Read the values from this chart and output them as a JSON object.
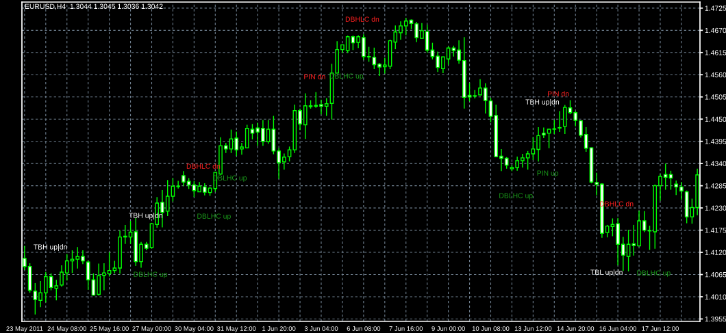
{
  "chart_data": {
    "type": "candlestick",
    "title": "EURUSD,H4  1.3044 1.3045 1.3036 1.3042",
    "categories": [
      "23 May 2011",
      null,
      null,
      null,
      null,
      null,
      null,
      null,
      "24 May 08:00",
      null,
      null,
      null,
      null,
      null,
      null,
      null,
      "25 May 16:00",
      null,
      null,
      null,
      null,
      null,
      null,
      null,
      "27 May 00:00",
      null,
      null,
      null,
      null,
      null,
      null,
      null,
      "30 May 04:00",
      null,
      null,
      null,
      null,
      null,
      null,
      null,
      "31 May 12:00",
      null,
      null,
      null,
      null,
      null,
      null,
      null,
      "1 Jun 20:00",
      null,
      null,
      null,
      null,
      null,
      null,
      null,
      "3 Jun 04:00",
      null,
      null,
      null,
      null,
      null,
      null,
      null,
      "6 Jun 08:00",
      null,
      null,
      null,
      null,
      null,
      null,
      null,
      "7 Jun 16:00",
      null,
      null,
      null,
      null,
      null,
      null,
      null,
      "9 Jun 00:00",
      null,
      null,
      null,
      null,
      null,
      null,
      null,
      "10 Jun 08:00",
      null,
      null,
      null,
      null,
      null,
      null,
      null,
      "13 Jun 12:00",
      null,
      null,
      null,
      null,
      null,
      null,
      null,
      "14 Jun 20:00",
      null,
      null,
      null,
      null,
      null,
      null,
      null,
      "16 Jun 04:00",
      null,
      null,
      null,
      null,
      null,
      null,
      null,
      "17 Jun 12:00",
      null,
      null,
      null,
      null,
      null,
      null,
      null
    ],
    "ohlc": [
      [
        1.4105,
        1.4136,
        1.4076,
        1.4085
      ],
      [
        1.4085,
        1.4093,
        1.402,
        1.4026
      ],
      [
        1.4024,
        1.4044,
        1.3966,
        1.4003
      ],
      [
        1.4001,
        1.4049,
        1.3984,
        1.402
      ],
      [
        1.402,
        1.4071,
        1.3996,
        1.406
      ],
      [
        1.406,
        1.4068,
        1.4026,
        1.4033
      ],
      [
        1.4031,
        1.4052,
        1.4001,
        1.4037
      ],
      [
        1.4039,
        1.4088,
        1.4035,
        1.4071
      ],
      [
        1.4069,
        1.4116,
        1.405,
        1.4099
      ],
      [
        1.4099,
        1.4125,
        1.4069,
        1.4103
      ],
      [
        1.4103,
        1.4133,
        1.408,
        1.411
      ],
      [
        1.411,
        1.4125,
        1.4091,
        1.4099
      ],
      [
        1.4096,
        1.4099,
        1.4027,
        1.4052
      ],
      [
        1.4052,
        1.4068,
        1.4013,
        1.4014
      ],
      [
        1.4016,
        1.4092,
        1.4013,
        1.4062
      ],
      [
        1.4063,
        1.4093,
        1.4026,
        1.4069
      ],
      [
        1.4067,
        1.412,
        1.406,
        1.4075
      ],
      [
        1.4075,
        1.4099,
        1.4068,
        1.4081
      ],
      [
        1.4081,
        1.4174,
        1.4067,
        1.4158
      ],
      [
        1.4158,
        1.4188,
        1.4141,
        1.416
      ],
      [
        1.4158,
        1.4198,
        1.4141,
        1.417
      ],
      [
        1.4171,
        1.4205,
        1.4086,
        1.4097
      ],
      [
        1.4097,
        1.4146,
        1.4082,
        1.414
      ],
      [
        1.414,
        1.4146,
        1.4125,
        1.413
      ],
      [
        1.4132,
        1.4193,
        1.4129,
        1.4191
      ],
      [
        1.4189,
        1.4257,
        1.4181,
        1.4242
      ],
      [
        1.4244,
        1.4274,
        1.4182,
        1.4219
      ],
      [
        1.4222,
        1.4299,
        1.421,
        1.4259
      ],
      [
        1.4259,
        1.4304,
        1.4246,
        1.4284
      ],
      [
        1.4283,
        1.4297,
        1.4278,
        1.4284
      ],
      [
        1.431,
        1.4321,
        1.4284,
        1.4294
      ],
      [
        1.4296,
        1.4304,
        1.4277,
        1.4287
      ],
      [
        1.4287,
        1.4297,
        1.4257,
        1.4273
      ],
      [
        1.427,
        1.4294,
        1.427,
        1.4284
      ],
      [
        1.4282,
        1.4291,
        1.4261,
        1.4269
      ],
      [
        1.4268,
        1.4282,
        1.426,
        1.4279
      ],
      [
        1.4278,
        1.4319,
        1.427,
        1.4318
      ],
      [
        1.4314,
        1.4405,
        1.4312,
        1.4384
      ],
      [
        1.4384,
        1.4391,
        1.4366,
        1.4376
      ],
      [
        1.4376,
        1.4424,
        1.4366,
        1.4401
      ],
      [
        1.4403,
        1.4419,
        1.4359,
        1.4374
      ],
      [
        1.4376,
        1.4391,
        1.4362,
        1.4381
      ],
      [
        1.4379,
        1.4436,
        1.4378,
        1.4427
      ],
      [
        1.4425,
        1.4438,
        1.44,
        1.4415
      ],
      [
        1.4428,
        1.4441,
        1.4384,
        1.4418
      ],
      [
        1.4427,
        1.4448,
        1.4384,
        1.4395
      ],
      [
        1.4394,
        1.4448,
        1.4389,
        1.4425
      ],
      [
        1.4425,
        1.4458,
        1.4363,
        1.4371
      ],
      [
        1.4371,
        1.4379,
        1.4302,
        1.4342
      ],
      [
        1.4344,
        1.4365,
        1.4325,
        1.4356
      ],
      [
        1.4357,
        1.4382,
        1.4345,
        1.4374
      ],
      [
        1.4374,
        1.4486,
        1.4366,
        1.4471
      ],
      [
        1.4471,
        1.4476,
        1.4423,
        1.4438
      ],
      [
        1.4436,
        1.4514,
        1.4401,
        1.4483
      ],
      [
        1.4481,
        1.4497,
        1.4476,
        1.4483
      ],
      [
        1.4482,
        1.4517,
        1.4478,
        1.4484
      ],
      [
        1.4486,
        1.4498,
        1.4462,
        1.4482
      ],
      [
        1.4482,
        1.4502,
        1.4458,
        1.4488
      ],
      [
        1.4489,
        1.4587,
        1.4449,
        1.4564
      ],
      [
        1.4564,
        1.4643,
        1.4564,
        1.4622
      ],
      [
        1.4622,
        1.4635,
        1.4614,
        1.4634
      ],
      [
        1.462,
        1.4657,
        1.4614,
        1.4654
      ],
      [
        1.4654,
        1.4657,
        1.4621,
        1.4639
      ],
      [
        1.464,
        1.4658,
        1.4626,
        1.4654
      ],
      [
        1.4652,
        1.466,
        1.4596,
        1.4605
      ],
      [
        1.4604,
        1.4629,
        1.4592,
        1.4605
      ],
      [
        1.4603,
        1.4627,
        1.4574,
        1.4585
      ],
      [
        1.4586,
        1.4589,
        1.4557,
        1.4579
      ],
      [
        1.458,
        1.4602,
        1.4563,
        1.4584
      ],
      [
        1.4581,
        1.4647,
        1.4574,
        1.4644
      ],
      [
        1.4641,
        1.4682,
        1.4623,
        1.4666
      ],
      [
        1.4664,
        1.4692,
        1.4647,
        1.4681
      ],
      [
        1.4681,
        1.4701,
        1.4658,
        1.4693
      ],
      [
        1.4695,
        1.4697,
        1.4673,
        1.4687
      ],
      [
        1.4686,
        1.4691,
        1.4641,
        1.4652
      ],
      [
        1.465,
        1.4688,
        1.4649,
        1.4669
      ],
      [
        1.4667,
        1.4684,
        1.4614,
        1.4621
      ],
      [
        1.4621,
        1.4639,
        1.4598,
        1.4605
      ],
      [
        1.4606,
        1.4617,
        1.4567,
        1.4578
      ],
      [
        1.4575,
        1.4605,
        1.4564,
        1.4604
      ],
      [
        1.4599,
        1.463,
        1.4585,
        1.4626
      ],
      [
        1.4626,
        1.4632,
        1.4605,
        1.462
      ],
      [
        1.4621,
        1.4645,
        1.4587,
        1.4596
      ],
      [
        1.4595,
        1.4653,
        1.4476,
        1.4504
      ],
      [
        1.4509,
        1.4539,
        1.4494,
        1.4505
      ],
      [
        1.4507,
        1.4522,
        1.4501,
        1.4508
      ],
      [
        1.451,
        1.4549,
        1.4509,
        1.4527
      ],
      [
        1.4527,
        1.4539,
        1.4464,
        1.4496
      ],
      [
        1.4495,
        1.4503,
        1.4442,
        1.4457
      ],
      [
        1.4459,
        1.4486,
        1.4356,
        1.4357
      ],
      [
        1.4358,
        1.4376,
        1.4321,
        1.4353
      ],
      [
        1.4353,
        1.4356,
        1.4327,
        1.4336
      ],
      [
        1.4327,
        1.4336,
        1.4321,
        1.433
      ],
      [
        1.433,
        1.4357,
        1.4322,
        1.4347
      ],
      [
        1.4347,
        1.4364,
        1.433,
        1.4354
      ],
      [
        1.4354,
        1.4371,
        1.4325,
        1.4364
      ],
      [
        1.4364,
        1.4405,
        1.4349,
        1.4376
      ],
      [
        1.4375,
        1.443,
        1.4345,
        1.4409
      ],
      [
        1.4415,
        1.4429,
        1.4403,
        1.4411
      ],
      [
        1.4415,
        1.4426,
        1.4378,
        1.4425
      ],
      [
        1.4425,
        1.4448,
        1.4413,
        1.4426
      ],
      [
        1.4428,
        1.447,
        1.4418,
        1.4429
      ],
      [
        1.4432,
        1.4485,
        1.4413,
        1.4479
      ],
      [
        1.4478,
        1.4497,
        1.4462,
        1.4466
      ],
      [
        1.4466,
        1.447,
        1.4432,
        1.4447
      ],
      [
        1.4446,
        1.4447,
        1.4404,
        1.441
      ],
      [
        1.4412,
        1.443,
        1.4369,
        1.4378
      ],
      [
        1.4379,
        1.438,
        1.4291,
        1.4294
      ],
      [
        1.4293,
        1.4317,
        1.4261,
        1.4288
      ],
      [
        1.4289,
        1.4291,
        1.4156,
        1.4167
      ],
      [
        1.4169,
        1.4188,
        1.4157,
        1.4185
      ],
      [
        1.4184,
        1.4204,
        1.416,
        1.4189
      ],
      [
        1.4191,
        1.4205,
        1.4088,
        1.414
      ],
      [
        1.414,
        1.4158,
        1.4074,
        1.4113
      ],
      [
        1.411,
        1.4176,
        1.4073,
        1.414
      ],
      [
        1.4141,
        1.4188,
        1.4112,
        1.4137
      ],
      [
        1.4136,
        1.4223,
        1.4135,
        1.4198
      ],
      [
        1.4198,
        1.4222,
        1.417,
        1.4175
      ],
      [
        1.4174,
        1.4186,
        1.4126,
        1.4173
      ],
      [
        1.4171,
        1.4288,
        1.4129,
        1.4285
      ],
      [
        1.4285,
        1.4314,
        1.4248,
        1.4308
      ],
      [
        1.4313,
        1.434,
        1.4275,
        1.4306
      ],
      [
        1.4313,
        1.4322,
        1.4275,
        1.4304
      ],
      [
        1.4289,
        1.4298,
        1.4262,
        1.4282
      ],
      [
        1.4282,
        1.4294,
        1.425,
        1.4272
      ],
      [
        1.427,
        1.4273,
        1.4192,
        1.4208
      ],
      [
        1.4208,
        1.4253,
        1.4191,
        1.4231
      ],
      [
        1.4231,
        1.4327,
        1.4212,
        1.4312
      ]
    ],
    "ylim": [
      1.3949,
      1.474
    ],
    "yticks": [
      1.3955,
      {
        "value": 1.401,
        "label": "1.4010"
      },
      1.4065,
      {
        "value": 1.412,
        "label": "1.4120"
      },
      1.4175,
      {
        "value": 1.423,
        "label": "1.4230"
      },
      1.4285,
      {
        "value": 1.434,
        "label": "1.4340"
      },
      1.4395,
      {
        "value": 1.445,
        "label": "1.4450"
      },
      1.4505,
      {
        "value": 1.456,
        "label": "1.4560"
      },
      1.4615,
      {
        "value": 1.467,
        "label": "1.4670"
      },
      1.4725
    ],
    "grid": true,
    "annotations": [
      "TBH up|dn",
      "TBH up|dn",
      "DBLHC up",
      "DBHLC dn",
      "DBLHC up",
      "DBLHC up",
      "PIN dn",
      "DBLHC up",
      "DBHLC dn",
      "DBLHC up",
      "PIN up",
      "TBH up|dn",
      "PIN dn",
      "DBHLC dn",
      "TBL up|dn",
      "DBLHC up"
    ]
  }
}
